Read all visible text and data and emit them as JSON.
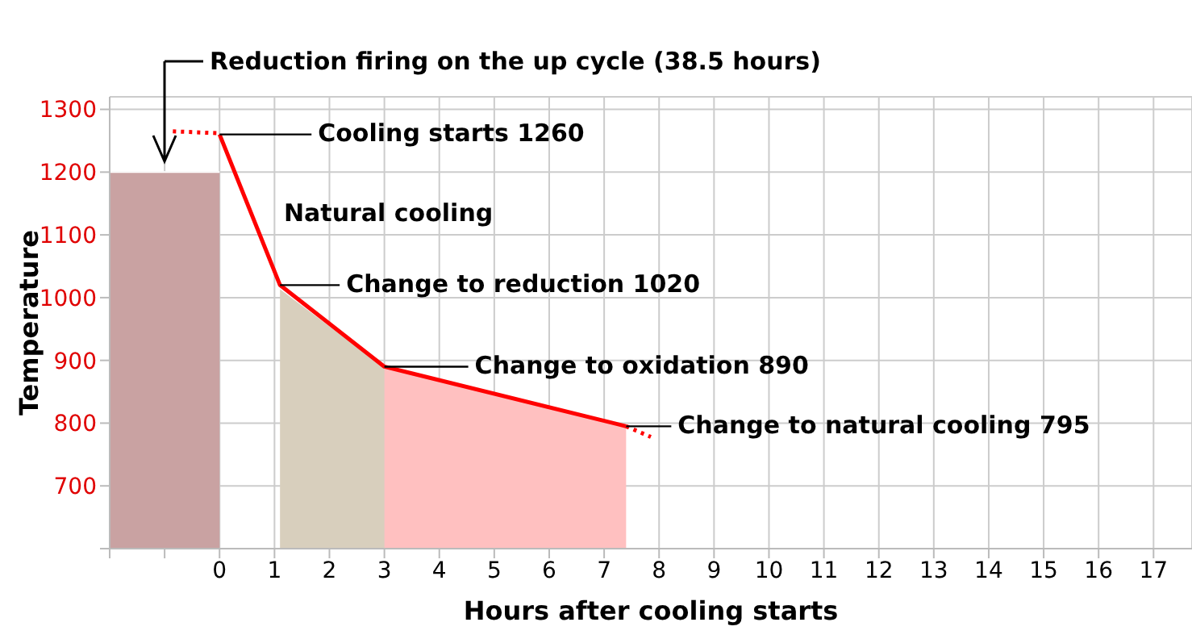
{
  "chart_data": {
    "type": "line",
    "xlabel": "Hours after cooling starts",
    "ylabel": "Temperature",
    "series": [
      {
        "type": "area",
        "color": "#c9a2a2",
        "x": [
          -2,
          0
        ],
        "values": [
          1200,
          1200
        ]
      },
      {
        "type": "area",
        "color": "#d8cfbd",
        "x": [
          1.1,
          3
        ],
        "values": [
          1015,
          890
        ]
      },
      {
        "type": "area",
        "color": "#ffc0c0",
        "x": [
          3,
          7.4
        ],
        "values": [
          890,
          795
        ]
      },
      {
        "color": "#ff0000",
        "line_style": "dotted",
        "x": [
          -0.85,
          0
        ],
        "values": [
          1265,
          1262
        ]
      },
      {
        "color": "#ff0000",
        "line_style": "solid",
        "x": [
          0,
          1.1,
          3,
          7.4
        ],
        "values": [
          1260,
          1020,
          890,
          795
        ]
      },
      {
        "color": "#ff0000",
        "line_style": "dotted",
        "x": [
          7.4,
          7.85
        ],
        "values": [
          795,
          778
        ]
      }
    ],
    "xlim": [
      -2,
      17.7
    ],
    "xticks": [
      {
        "value": -2,
        "label": null
      },
      {
        "value": -1,
        "label": null
      },
      0,
      1,
      2,
      3,
      4,
      5,
      6,
      7,
      8,
      9,
      10,
      11,
      12,
      13,
      14,
      15,
      16,
      17
    ],
    "ylim": [
      600,
      1320
    ],
    "yticks": [
      {
        "value": 600,
        "label": null
      },
      700,
      800,
      900,
      1000,
      1100,
      1200,
      1300
    ],
    "grid": true,
    "marker": "none",
    "annotations": [
      "Reduction firing on the up cycle (38.5 hours)",
      {
        "text": "Cooling starts  1260",
        "x": 0,
        "y": 1260
      },
      "Natural cooling",
      {
        "text": "Change to reduction 1020",
        "x": 1.1,
        "y": 1020
      },
      {
        "text": "Change to oxidation 890",
        "x": 3,
        "y": 890
      },
      {
        "text": "Change to natural cooling 795",
        "x": 7.4,
        "y": 795
      }
    ]
  }
}
